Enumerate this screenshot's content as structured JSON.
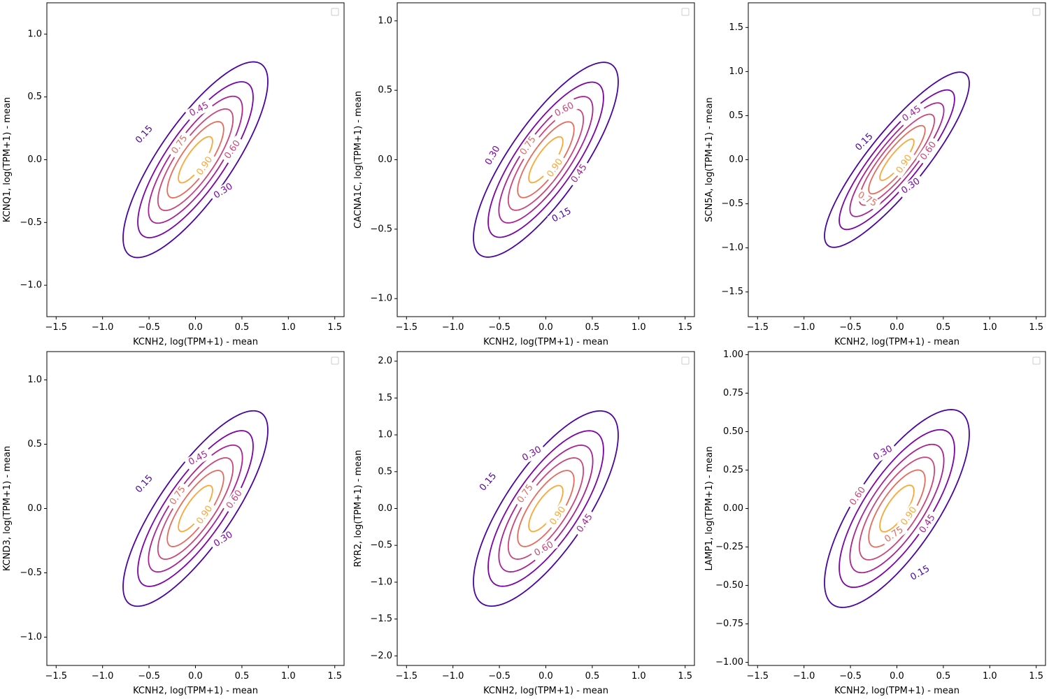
{
  "chart_data": [
    {
      "type": "contour",
      "xlabel": "KCNH2,  log(TPM+1) - mean",
      "ylabel": "KCNQ1, log(TPM+1) - mean",
      "xlim": [
        -1.6,
        1.6
      ],
      "ylim": [
        -1.25,
        1.25
      ],
      "xticks": [
        -1.5,
        -1.0,
        -0.5,
        0.0,
        0.5,
        1.0,
        1.5
      ],
      "xtick_labels": [
        "−1.5",
        "−1.0",
        "−0.5",
        "0.0",
        "0.5",
        "1.0",
        "1.5"
      ],
      "yticks": [
        -1.0,
        -0.5,
        0.0,
        0.5,
        1.0
      ],
      "ytick_labels": [
        "−1.0",
        "−0.5",
        "0.0",
        "0.5",
        "1.0"
      ],
      "distribution": {
        "sx": 0.4,
        "sy": 0.4,
        "rho": 0.8
      },
      "levels": [
        {
          "value": 0.15,
          "label": "0.15",
          "color": "#4b03a1"
        },
        {
          "value": 0.3,
          "label": "0.30",
          "color": "#7d03a8"
        },
        {
          "value": 0.45,
          "label": "0.45",
          "color": "#a82296"
        },
        {
          "value": 0.6,
          "label": "0.60",
          "color": "#cb4679"
        },
        {
          "value": 0.75,
          "label": "0.75",
          "color": "#e56b5d"
        },
        {
          "value": 0.9,
          "label": "0.90",
          "color": "#fca636"
        }
      ],
      "contour_labels": [
        {
          "text": "0.15",
          "x": -0.55,
          "y": 0.2,
          "angle": -48,
          "color": "#4b03a1"
        },
        {
          "text": "0.45",
          "x": 0.04,
          "y": 0.4,
          "angle": -28,
          "color": "#a82296"
        },
        {
          "text": "0.75",
          "x": -0.17,
          "y": 0.12,
          "angle": -55,
          "color": "#e56b5d"
        },
        {
          "text": "0.90",
          "x": 0.1,
          "y": -0.05,
          "angle": -55,
          "color": "#fca636"
        },
        {
          "text": "0.60",
          "x": 0.4,
          "y": 0.08,
          "angle": -55,
          "color": "#cb4679"
        },
        {
          "text": "0.30",
          "x": 0.3,
          "y": -0.25,
          "angle": -33,
          "color": "#7d03a8"
        }
      ]
    },
    {
      "type": "contour",
      "xlabel": "KCNH2,  log(TPM+1) - mean",
      "ylabel": "CACNA1C, log(TPM+1) - mean",
      "xlim": [
        -1.6,
        1.6
      ],
      "ylim": [
        -1.13,
        1.13
      ],
      "xticks": [
        -1.5,
        -1.0,
        -0.5,
        0.0,
        0.5,
        1.0,
        1.5
      ],
      "xtick_labels": [
        "−1.5",
        "−1.0",
        "−0.5",
        "0.0",
        "0.5",
        "1.0",
        "1.5"
      ],
      "yticks": [
        -1.0,
        -0.5,
        0.0,
        0.5,
        1.0
      ],
      "ytick_labels": [
        "−1.0",
        "−0.5",
        "0.0",
        "0.5",
        "1.0"
      ],
      "distribution": {
        "sx": 0.4,
        "sy": 0.36,
        "rho": 0.8
      },
      "levels": [
        {
          "value": 0.15,
          "label": "0.15",
          "color": "#4b03a1"
        },
        {
          "value": 0.3,
          "label": "0.30",
          "color": "#7d03a8"
        },
        {
          "value": 0.45,
          "label": "0.45",
          "color": "#a82296"
        },
        {
          "value": 0.6,
          "label": "0.60",
          "color": "#cb4679"
        },
        {
          "value": 0.75,
          "label": "0.75",
          "color": "#e56b5d"
        },
        {
          "value": 0.9,
          "label": "0.90",
          "color": "#fca636"
        }
      ],
      "contour_labels": [
        {
          "text": "0.30",
          "x": -0.57,
          "y": 0.03,
          "angle": -60,
          "color": "#7d03a8"
        },
        {
          "text": "0.60",
          "x": 0.2,
          "y": 0.36,
          "angle": -28,
          "color": "#cb4679"
        },
        {
          "text": "0.75",
          "x": -0.19,
          "y": 0.1,
          "angle": -55,
          "color": "#e56b5d"
        },
        {
          "text": "0.90",
          "x": 0.1,
          "y": -0.06,
          "angle": -55,
          "color": "#fca636"
        },
        {
          "text": "0.45",
          "x": 0.36,
          "y": -0.1,
          "angle": -55,
          "color": "#a82296"
        },
        {
          "text": "0.15",
          "x": 0.17,
          "y": -0.4,
          "angle": -28,
          "color": "#4b03a1"
        }
      ]
    },
    {
      "type": "contour",
      "xlabel": "KCNH2,  log(TPM+1) - mean",
      "ylabel": "SCN5A, log(TPM+1) - mean",
      "xlim": [
        -1.6,
        1.6
      ],
      "ylim": [
        -1.78,
        1.78
      ],
      "xticks": [
        -1.5,
        -1.0,
        -0.5,
        0.0,
        0.5,
        1.0,
        1.5
      ],
      "xtick_labels": [
        "−1.5",
        "−1.0",
        "−0.5",
        "0.0",
        "0.5",
        "1.0",
        "1.5"
      ],
      "yticks": [
        -1.5,
        -1.0,
        -0.5,
        0.0,
        0.5,
        1.0,
        1.5
      ],
      "ytick_labels": [
        "−1.5",
        "−1.0",
        "−0.5",
        "0.0",
        "0.5",
        "1.0",
        "1.5"
      ],
      "distribution": {
        "sx": 0.4,
        "sy": 0.51,
        "rho": 0.87
      },
      "levels": [
        {
          "value": 0.15,
          "label": "0.15",
          "color": "#4b03a1"
        },
        {
          "value": 0.3,
          "label": "0.30",
          "color": "#7d03a8"
        },
        {
          "value": 0.45,
          "label": "0.45",
          "color": "#a82296"
        },
        {
          "value": 0.6,
          "label": "0.60",
          "color": "#cb4679"
        },
        {
          "value": 0.75,
          "label": "0.75",
          "color": "#e56b5d"
        },
        {
          "value": 0.9,
          "label": "0.90",
          "color": "#fca636"
        }
      ],
      "contour_labels": [
        {
          "text": "0.15",
          "x": -0.35,
          "y": 0.2,
          "angle": -45,
          "color": "#4b03a1"
        },
        {
          "text": "0.45",
          "x": 0.16,
          "y": 0.52,
          "angle": -35,
          "color": "#a82296"
        },
        {
          "text": "0.60",
          "x": 0.34,
          "y": 0.1,
          "angle": -55,
          "color": "#cb4679"
        },
        {
          "text": "0.90",
          "x": 0.08,
          "y": -0.05,
          "angle": -55,
          "color": "#fca636"
        },
        {
          "text": "0.30",
          "x": 0.15,
          "y": -0.3,
          "angle": -35,
          "color": "#7d03a8"
        },
        {
          "text": "0.75",
          "x": -0.32,
          "y": -0.45,
          "angle": 30,
          "color": "#e56b5d"
        }
      ]
    },
    {
      "type": "contour",
      "xlabel": "KCNH2,  log(TPM+1) - mean",
      "ylabel": "KCND3, log(TPM+1) - mean",
      "xlim": [
        -1.6,
        1.6
      ],
      "ylim": [
        -1.22,
        1.22
      ],
      "xticks": [
        -1.5,
        -1.0,
        -0.5,
        0.0,
        0.5,
        1.0,
        1.5
      ],
      "xtick_labels": [
        "−1.5",
        "−1.0",
        "−0.5",
        "0.0",
        "0.5",
        "1.0",
        "1.5"
      ],
      "yticks": [
        -1.0,
        -0.5,
        0.0,
        0.5,
        1.0
      ],
      "ytick_labels": [
        "−1.0",
        "−0.5",
        "0.0",
        "0.5",
        "1.0"
      ],
      "distribution": {
        "sx": 0.4,
        "sy": 0.39,
        "rho": 0.8
      },
      "levels": [
        {
          "value": 0.15,
          "label": "0.15",
          "color": "#4b03a1"
        },
        {
          "value": 0.3,
          "label": "0.30",
          "color": "#7d03a8"
        },
        {
          "value": 0.45,
          "label": "0.45",
          "color": "#a82296"
        },
        {
          "value": 0.6,
          "label": "0.60",
          "color": "#cb4679"
        },
        {
          "value": 0.75,
          "label": "0.75",
          "color": "#e56b5d"
        },
        {
          "value": 0.9,
          "label": "0.90",
          "color": "#fca636"
        }
      ],
      "contour_labels": [
        {
          "text": "0.15",
          "x": -0.55,
          "y": 0.19,
          "angle": -48,
          "color": "#4b03a1"
        },
        {
          "text": "0.45",
          "x": 0.03,
          "y": 0.39,
          "angle": -28,
          "color": "#a82296"
        },
        {
          "text": "0.75",
          "x": -0.19,
          "y": 0.1,
          "angle": -55,
          "color": "#e56b5d"
        },
        {
          "text": "0.90",
          "x": 0.1,
          "y": -0.05,
          "angle": -55,
          "color": "#fca636"
        },
        {
          "text": "0.60",
          "x": 0.42,
          "y": 0.07,
          "angle": -55,
          "color": "#cb4679"
        },
        {
          "text": "0.30",
          "x": 0.3,
          "y": -0.24,
          "angle": -33,
          "color": "#7d03a8"
        }
      ]
    },
    {
      "type": "contour",
      "xlabel": "KCNH2,  log(TPM+1) - mean",
      "ylabel": "RYR2, log(TPM+1) - mean",
      "xlim": [
        -1.6,
        1.6
      ],
      "ylim": [
        -2.13,
        2.13
      ],
      "xticks": [
        -1.5,
        -1.0,
        -0.5,
        0.0,
        0.5,
        1.0,
        1.5
      ],
      "xtick_labels": [
        "−1.5",
        "−1.0",
        "−0.5",
        "0.0",
        "0.5",
        "1.0",
        "1.5"
      ],
      "yticks": [
        -2.0,
        -1.5,
        -1.0,
        -0.5,
        0.0,
        0.5,
        1.0,
        1.5,
        2.0
      ],
      "ytick_labels": [
        "−2.0",
        "−1.5",
        "−1.0",
        "−0.5",
        "0.0",
        "0.5",
        "1.0",
        "1.5",
        "2.0"
      ],
      "distribution": {
        "sx": 0.4,
        "sy": 0.68,
        "rho": 0.75
      },
      "levels": [
        {
          "value": 0.15,
          "label": "0.15",
          "color": "#4b03a1"
        },
        {
          "value": 0.3,
          "label": "0.30",
          "color": "#7d03a8"
        },
        {
          "value": 0.45,
          "label": "0.45",
          "color": "#a82296"
        },
        {
          "value": 0.6,
          "label": "0.60",
          "color": "#cb4679"
        },
        {
          "value": 0.75,
          "label": "0.75",
          "color": "#e56b5d"
        },
        {
          "value": 0.9,
          "label": "0.90",
          "color": "#fca636"
        }
      ],
      "contour_labels": [
        {
          "text": "0.15",
          "x": -0.62,
          "y": 0.36,
          "angle": -50,
          "color": "#4b03a1"
        },
        {
          "text": "0.30",
          "x": -0.15,
          "y": 0.74,
          "angle": -30,
          "color": "#7d03a8"
        },
        {
          "text": "0.75",
          "x": -0.22,
          "y": 0.2,
          "angle": -55,
          "color": "#e56b5d"
        },
        {
          "text": "0.90",
          "x": 0.13,
          "y": -0.1,
          "angle": -55,
          "color": "#fca636"
        },
        {
          "text": "0.45",
          "x": 0.42,
          "y": -0.2,
          "angle": -55,
          "color": "#a82296"
        },
        {
          "text": "0.60",
          "x": -0.02,
          "y": -0.55,
          "angle": -30,
          "color": "#cb4679"
        }
      ]
    },
    {
      "type": "contour",
      "xlabel": "KCNH2,  log(TPM+1) - mean",
      "ylabel": "LAMP1, log(TPM+1) - mean",
      "xlim": [
        -1.6,
        1.6
      ],
      "ylim": [
        -1.02,
        1.02
      ],
      "xticks": [
        -1.5,
        -1.0,
        -0.5,
        0.0,
        0.5,
        1.0,
        1.5
      ],
      "xtick_labels": [
        "−1.5",
        "−1.0",
        "−0.5",
        "0.0",
        "0.5",
        "1.0",
        "1.5"
      ],
      "yticks": [
        -1.0,
        -0.75,
        -0.5,
        -0.25,
        0.0,
        0.25,
        0.5,
        0.75,
        1.0
      ],
      "ytick_labels": [
        "−1.00",
        "−0.75",
        "−0.50",
        "−0.25",
        "0.00",
        "0.25",
        "0.50",
        "0.75",
        "1.00"
      ],
      "distribution": {
        "sx": 0.4,
        "sy": 0.33,
        "rho": 0.75
      },
      "levels": [
        {
          "value": 0.15,
          "label": "0.15",
          "color": "#4b03a1"
        },
        {
          "value": 0.3,
          "label": "0.30",
          "color": "#7d03a8"
        },
        {
          "value": 0.45,
          "label": "0.45",
          "color": "#a82296"
        },
        {
          "value": 0.6,
          "label": "0.60",
          "color": "#cb4679"
        },
        {
          "value": 0.75,
          "label": "0.75",
          "color": "#e56b5d"
        },
        {
          "value": 0.9,
          "label": "0.90",
          "color": "#fca636"
        }
      ],
      "contour_labels": [
        {
          "text": "0.30",
          "x": -0.15,
          "y": 0.36,
          "angle": -30,
          "color": "#7d03a8"
        },
        {
          "text": "0.60",
          "x": -0.42,
          "y": 0.08,
          "angle": -55,
          "color": "#cb4679"
        },
        {
          "text": "0.90",
          "x": 0.13,
          "y": -0.05,
          "angle": -55,
          "color": "#fca636"
        },
        {
          "text": "0.75",
          "x": -0.03,
          "y": -0.17,
          "angle": -35,
          "color": "#e56b5d"
        },
        {
          "text": "0.45",
          "x": 0.33,
          "y": -0.1,
          "angle": -55,
          "color": "#a82296"
        },
        {
          "text": "0.15",
          "x": 0.25,
          "y": -0.42,
          "angle": -30,
          "color": "#4b03a1"
        }
      ]
    }
  ]
}
